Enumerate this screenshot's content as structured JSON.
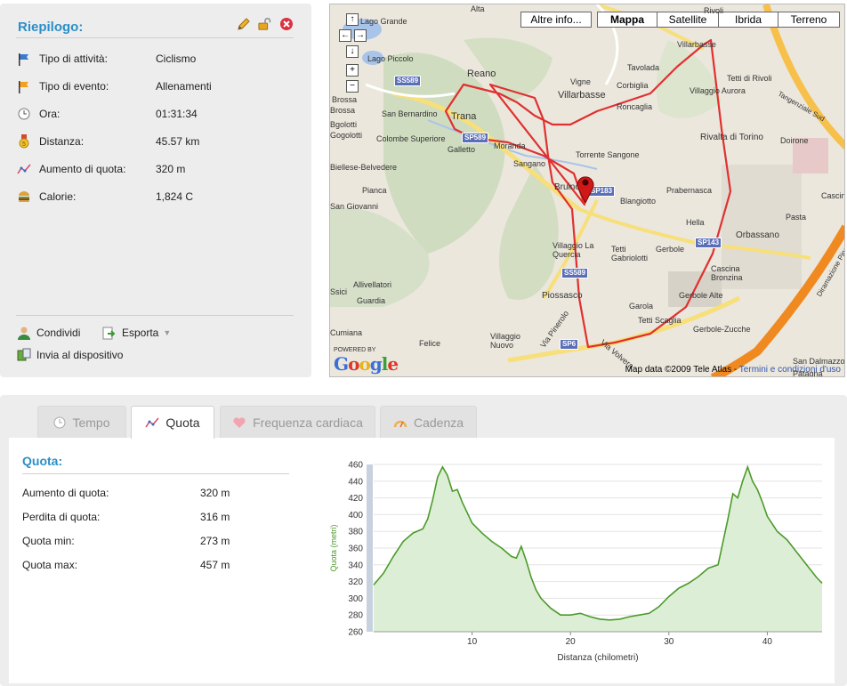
{
  "summary": {
    "title": "Riepilogo:",
    "stats": [
      {
        "icon": "flag-blue-icon",
        "label": "Tipo di attività:",
        "value": "Ciclismo"
      },
      {
        "icon": "flag-orange-icon",
        "label": "Tipo di evento:",
        "value": "Allenamenti"
      },
      {
        "icon": "clock-icon",
        "label": "Ora:",
        "value": "01:31:34"
      },
      {
        "icon": "medal-icon",
        "label": "Distanza:",
        "value": "45.57 km"
      },
      {
        "icon": "elevation-icon",
        "label": "Aumento di quota:",
        "value": "320 m"
      },
      {
        "icon": "burger-icon",
        "label": "Calorie:",
        "value": "1,824 C"
      }
    ],
    "actions": {
      "share": "Condividi",
      "export": "Esporta",
      "send": "Invia al dispositivo"
    }
  },
  "map": {
    "types": [
      "Altre info...",
      "Mappa",
      "Satellite",
      "Ibrida",
      "Terreno"
    ],
    "active_type": "Mappa",
    "places": [
      "Lago Grande",
      "Alta",
      "Lago Piccolo",
      "Reano",
      "Vigne",
      "Tavolada",
      "Villarbasse",
      "Rivoli",
      "Tetti di Rivoli",
      "Corbiglia",
      "Villarbasse",
      "Villaggio Aurora",
      "Roncaglia",
      "Brossa",
      "San Bernardino",
      "Trana",
      "Colombe Superiore",
      "Galletto",
      "Moranda",
      "Sangano",
      "Torrente Sangone",
      "Rivalta di Torino",
      "Doirone",
      "Biellese-Belvedere",
      "Bruino",
      "Blangiotto",
      "Prabernasca",
      "Pianca",
      "San Giovanni",
      "Hella",
      "Pasta",
      "Orbassano",
      "Villaggio La Quercia",
      "Tetti Gabriolotti",
      "Gerbole",
      "Cascina Bronzina",
      "Allivellatori",
      "Gerbole Alte",
      "Guardia",
      "Piossasco",
      "Garola",
      "Tetti Scaglia",
      "Gerbole-Zucche",
      "Cumiana",
      "Felice",
      "Villaggio Nuovo",
      "Via Pinerolo",
      "Via Volvera",
      "San Dalmazzo",
      "Patagna",
      "Tangenziale Sud",
      "Diramazione Pinerolo",
      "Cascina",
      "Brossa",
      "Bgolotti",
      "Ssici",
      "Gogolotti"
    ],
    "shields": [
      "SS589",
      "SP589",
      "SP183",
      "SS589",
      "SP143",
      "SP6"
    ],
    "powered_by": "POWERED BY",
    "brand": "Google",
    "copyright": "Map data ©2009 Tele Atlas - ",
    "terms": "Termini e condizioni d'uso"
  },
  "tabs": [
    {
      "icon": "clock-icon",
      "label": "Tempo",
      "active": false
    },
    {
      "icon": "elevation-icon",
      "label": "Quota",
      "active": true
    },
    {
      "icon": "heart-icon",
      "label": "Frequenza cardiaca",
      "active": false
    },
    {
      "icon": "cadence-icon",
      "label": "Cadenza",
      "active": false
    }
  ],
  "quota": {
    "title": "Quota:",
    "rows": [
      {
        "label": "Aumento di quota:",
        "value": "320 m"
      },
      {
        "label": "Perdita di quota:",
        "value": "316 m"
      },
      {
        "label": "Quota min:",
        "value": "273 m"
      },
      {
        "label": "Quota max:",
        "value": "457 m"
      }
    ]
  },
  "chart_data": {
    "type": "area",
    "xlabel": "Distanza (chilometri)",
    "ylabel": "Quota (metri)",
    "xlim": [
      0,
      45.57
    ],
    "ylim": [
      260,
      460
    ],
    "xticks": [
      10,
      20,
      30,
      40
    ],
    "yticks": [
      260,
      280,
      300,
      320,
      340,
      360,
      380,
      400,
      420,
      440,
      460
    ],
    "grid": true,
    "color": "#4c9a2a",
    "fill": "#dcefd6",
    "x": [
      0,
      1,
      2,
      3,
      4,
      5,
      5.5,
      6,
      6.5,
      7,
      7.5,
      8,
      8.5,
      9,
      10,
      11,
      12,
      13,
      14,
      14.5,
      15,
      15.5,
      16,
      16.5,
      17,
      18,
      19,
      20,
      21,
      22,
      23,
      24,
      25,
      26,
      27,
      28,
      29,
      30,
      31,
      32,
      33,
      34,
      35,
      36,
      36.5,
      37,
      37.5,
      38,
      38.5,
      39,
      39.5,
      40,
      41,
      42,
      43,
      44,
      45,
      45.57
    ],
    "y": [
      316,
      330,
      350,
      368,
      378,
      383,
      395,
      418,
      445,
      457,
      447,
      428,
      430,
      415,
      390,
      378,
      368,
      360,
      350,
      348,
      362,
      345,
      325,
      310,
      300,
      288,
      280,
      280,
      282,
      278,
      275,
      274,
      275,
      278,
      280,
      282,
      290,
      302,
      312,
      318,
      326,
      336,
      340,
      395,
      425,
      420,
      440,
      457,
      440,
      430,
      415,
      398,
      380,
      370,
      355,
      340,
      325,
      318
    ]
  }
}
